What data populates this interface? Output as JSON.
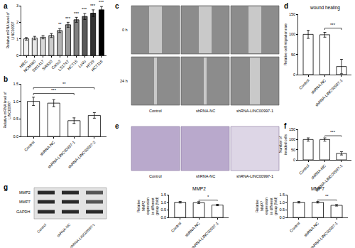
{
  "chart_data": [
    {
      "panel": "a",
      "type": "bar",
      "y_label": "Relative mRNA level of LINC00997",
      "categories": [
        "HIEC",
        "NCM460",
        "SW1417",
        "SW620",
        "Caco2",
        "LS174T",
        "HCT15",
        "LoVo",
        "HT29",
        "HCT116"
      ],
      "values": [
        1.0,
        1.05,
        1.1,
        1.2,
        1.5,
        1.85,
        2.15,
        2.35,
        2.55,
        2.75
      ],
      "errors": [
        0.08,
        0.1,
        0.1,
        0.12,
        0.12,
        0.15,
        0.15,
        0.18,
        0.2,
        0.2
      ],
      "colors": [
        "#f2f2f2",
        "#e6e6e6",
        "#d9d9d9",
        "#cccccc",
        "#b3b3b3",
        "#999999",
        "#808080",
        "#595959",
        "#333333",
        "#000000"
      ],
      "ylim": [
        0,
        3
      ],
      "yticks": [
        0,
        1,
        2,
        3
      ],
      "significance": [
        {
          "text": "**",
          "over": [
            "Caco2"
          ]
        },
        {
          "text": "***",
          "over": [
            "LS174T"
          ]
        },
        {
          "text": "***",
          "over": [
            "HCT15"
          ]
        },
        {
          "text": "***",
          "over": [
            "LoVo"
          ]
        },
        {
          "text": "***",
          "over": [
            "HT29"
          ]
        },
        {
          "text": "***",
          "over": [
            "HCT116"
          ]
        }
      ]
    },
    {
      "panel": "b",
      "type": "bar",
      "y_label": "Relative mRNA level of LINC00997",
      "categories": [
        "Control",
        "shRNA-NC",
        "shRNA-LINC00997-1",
        "shRNA-LINC00997-2"
      ],
      "values": [
        1.0,
        0.95,
        0.45,
        0.6
      ],
      "errors": [
        0.12,
        0.1,
        0.08,
        0.08
      ],
      "color": "#ffffff",
      "ylim": [
        0,
        1.5
      ],
      "yticks": [
        {
          "value": 0,
          "label": "0.0"
        },
        {
          "value": 0.5,
          "label": "0.5"
        },
        {
          "value": 1,
          "label": "1.0"
        },
        {
          "value": 1.5,
          "label": "1.5"
        }
      ],
      "significance": [
        {
          "text": "***",
          "over": [
            "Control",
            "shRNA-LINC00997-1"
          ]
        },
        {
          "text": "**",
          "over": [
            "Control",
            "shRNA-LINC00997-2"
          ]
        }
      ]
    },
    {
      "panel": "d",
      "type": "bar",
      "title": "wound healing",
      "y_label": "Relative cell migration rate",
      "categories": [
        "Control",
        "shRNA-NC",
        "shRNA-LINC00997-1"
      ],
      "values": [
        100,
        99,
        20
      ],
      "errors": [
        10,
        6,
        18
      ],
      "color": "#ffffff",
      "ylim": [
        0,
        150
      ],
      "yticks": [
        0,
        50,
        100,
        150
      ],
      "significance": [
        {
          "text": "***",
          "over": [
            "shRNA-NC",
            "shRNA-LINC00997-1"
          ]
        }
      ]
    },
    {
      "panel": "f",
      "type": "bar",
      "y_label": "Number of invaded cells",
      "categories": [
        "Control",
        "shRNA-NC",
        "shRNA-LINC00997-1"
      ],
      "values": [
        100,
        100,
        32
      ],
      "errors": [
        8,
        8,
        8
      ],
      "color": "#ffffff",
      "ylim": [
        0,
        150
      ],
      "yticks": [
        0,
        50,
        100,
        150
      ],
      "significance": [
        {
          "text": "***",
          "over": [
            "shRNA-NC",
            "shRNA-LINC00997-1"
          ]
        }
      ]
    },
    {
      "type": "bar",
      "title": "MMP2",
      "y_label": "Relative MMP2 expression in different group (fold)",
      "categories": [
        "Control",
        "shRNA-NC",
        "shRNA-LINC00997-1"
      ],
      "values": [
        1.0,
        0.98,
        0.82
      ],
      "errors": [
        0.05,
        0.06,
        0.05
      ],
      "color": "#ffffff",
      "ylim": [
        0,
        1.5
      ],
      "yticks": [
        {
          "value": 0,
          "label": "0.0"
        },
        {
          "value": 0.5,
          "label": "0.5"
        },
        {
          "value": 1,
          "label": "1.0"
        },
        {
          "value": 1.5,
          "label": "1.5"
        }
      ],
      "significance": [
        {
          "text": "*",
          "over": [
            "shRNA-NC",
            "shRNA-LINC00997-1"
          ]
        }
      ]
    },
    {
      "type": "bar",
      "title": "MMP7",
      "y_label": "Relative MMP7 expression in different group (fold)",
      "categories": [
        "Control",
        "shRNA-NC",
        "shRNA-LINC00997-1"
      ],
      "values": [
        1.0,
        1.0,
        0.8
      ],
      "errors": [
        0.05,
        0.05,
        0.05
      ],
      "color": "#ffffff",
      "ylim": [
        0,
        1.5
      ],
      "yticks": [
        {
          "value": 0,
          "label": "0.0"
        },
        {
          "value": 0.5,
          "label": "0.5"
        },
        {
          "value": 1,
          "label": "1.0"
        },
        {
          "value": 1.5,
          "label": "1.5"
        }
      ],
      "significance": [
        {
          "text": "**",
          "over": [
            "shRNA-NC",
            "shRNA-LINC00997-1"
          ]
        }
      ]
    }
  ],
  "image_panels": [
    {
      "panel": "c",
      "row_labels": [
        "0 h",
        "24 h"
      ],
      "column_labels": [
        "Control",
        "shRNA-NC",
        "shRNA-LINC00997-1"
      ]
    },
    {
      "panel": "e",
      "column_labels": [
        "Control",
        "shRNA-NC",
        "shRNA-LINC00997-1"
      ]
    },
    {
      "panel": "g",
      "band_labels": [
        "MMP2",
        "MMP7",
        "GAPDH"
      ],
      "lane_labels": [
        "Control",
        "shRNA-NC",
        "shRNA-LINC00997-1"
      ]
    }
  ]
}
